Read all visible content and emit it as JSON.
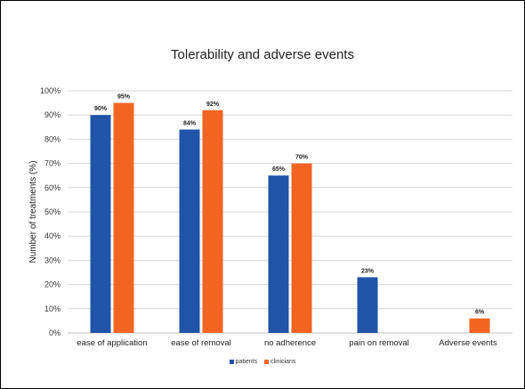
{
  "chart_data": {
    "type": "bar",
    "title": "Tolerability and adverse events",
    "xlabel": "",
    "ylabel": "Number of treatments (%)",
    "categories": [
      "ease of application",
      "ease of removal",
      "no adherence",
      "pain on removal",
      "Adverse events"
    ],
    "series": [
      {
        "name": "patients",
        "color": "#1f54a8",
        "values": [
          90,
          84,
          65,
          23,
          null
        ],
        "labels": [
          "90%",
          "84%",
          "65%",
          "23%",
          null
        ]
      },
      {
        "name": "clinicians",
        "color": "#f26422",
        "values": [
          95,
          92,
          70,
          null,
          6
        ],
        "labels": [
          "95%",
          "92%",
          "70%",
          null,
          "6%"
        ]
      }
    ],
    "ylim": [
      0,
      100
    ],
    "yticks": [
      "0%",
      "10%",
      "20%",
      "30%",
      "40%",
      "50%",
      "60%",
      "70%",
      "80%",
      "90%",
      "100%"
    ],
    "grid": true,
    "legend_position": "bottom"
  }
}
